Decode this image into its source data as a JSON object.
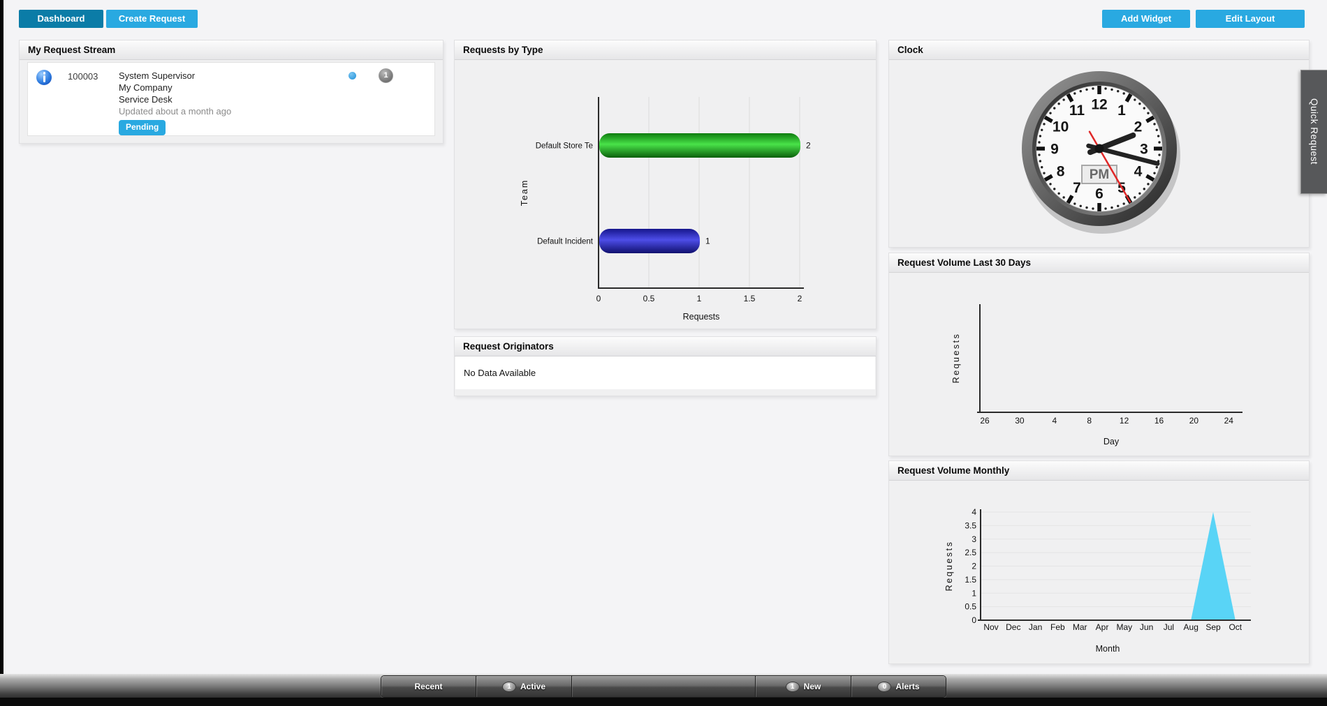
{
  "toolbar": {
    "dashboard_label": "Dashboard",
    "create_request_label": "Create Request",
    "add_widget_label": "Add Widget",
    "edit_layout_label": "Edit Layout"
  },
  "colors": {
    "active_tab_blue": "#0b7ca7",
    "accent_blue": "#29a9e1",
    "status_pending": "#29a9e1",
    "bar_green": "#22c122",
    "bar_blue": "#2e2ec8",
    "area_cyan": "#59d4f6",
    "second_hand_red": "#e02828"
  },
  "widgets": {
    "request_stream": {
      "title": "My Request Stream",
      "item": {
        "icon": "info-sphere-icon",
        "id": "100003",
        "requester": "System Supervisor",
        "company": "My Company",
        "team": "Service Desk",
        "updated": "Updated about a month ago",
        "status": "Pending",
        "note_count": "1"
      }
    },
    "requests_by_type": {
      "title": "Requests by Type"
    },
    "request_originators": {
      "title": "Request Originators",
      "empty_message": "No Data Available"
    },
    "clock": {
      "title": "Clock",
      "period_label": "PM",
      "hour": 2,
      "minute": 17,
      "second": 25,
      "face_numbers": [
        "1",
        "2",
        "3",
        "4",
        "5",
        "6",
        "7",
        "8",
        "9",
        "10",
        "11",
        "12"
      ]
    },
    "volume_30_days": {
      "title": "Request Volume Last 30 Days"
    },
    "volume_monthly": {
      "title": "Request Volume Monthly"
    }
  },
  "quick_request_tab": {
    "label": "Quick Request"
  },
  "status_bar": {
    "items": [
      {
        "label": "Recent",
        "badge": ""
      },
      {
        "label": "Active",
        "badge": "1"
      },
      {
        "label": "",
        "badge": ""
      },
      {
        "label": "New",
        "badge": "1"
      },
      {
        "label": "Alerts",
        "badge": "0"
      }
    ]
  },
  "chart_data": [
    {
      "id": "requests_by_type",
      "type": "bar",
      "orientation": "horizontal",
      "title": "Requests by Type",
      "categories": [
        "Default Store Te",
        "Default Incident"
      ],
      "values": [
        2,
        1
      ],
      "value_labels": [
        "2",
        "1"
      ],
      "bar_gradients": [
        [
          "#0e7c0e",
          "#49e249",
          "#0a5f0a"
        ],
        [
          "#16168c",
          "#4d4de8",
          "#10106e"
        ]
      ],
      "xlabel": "Requests",
      "ylabel": "Team",
      "xlim": [
        0,
        2
      ],
      "xticks": [
        0,
        0.5,
        1,
        1.5,
        2
      ],
      "grid": "vertical"
    },
    {
      "id": "volume_last_30_days",
      "type": "line",
      "title": "Request Volume Last 30 Days",
      "x_tick_labels": [
        "26",
        "30",
        "4",
        "8",
        "12",
        "16",
        "20",
        "24"
      ],
      "values": [],
      "xlabel": "Day",
      "ylabel": "Requests"
    },
    {
      "id": "volume_monthly",
      "type": "area",
      "title": "Request Volume Monthly",
      "categories": [
        "Nov",
        "Dec",
        "Jan",
        "Feb",
        "Mar",
        "Apr",
        "May",
        "Jun",
        "Jul",
        "Aug",
        "Sep",
        "Oct"
      ],
      "values": [
        0,
        0,
        0,
        0,
        0,
        0,
        0,
        0,
        0,
        0,
        4,
        0
      ],
      "ylim": [
        0,
        4
      ],
      "yticks": [
        0,
        0.5,
        1,
        1.5,
        2,
        2.5,
        3,
        3.5,
        4
      ],
      "xlabel": "Month",
      "ylabel": "Requests",
      "fill_color": "#59d4f6",
      "grid": "horizontal"
    }
  ]
}
